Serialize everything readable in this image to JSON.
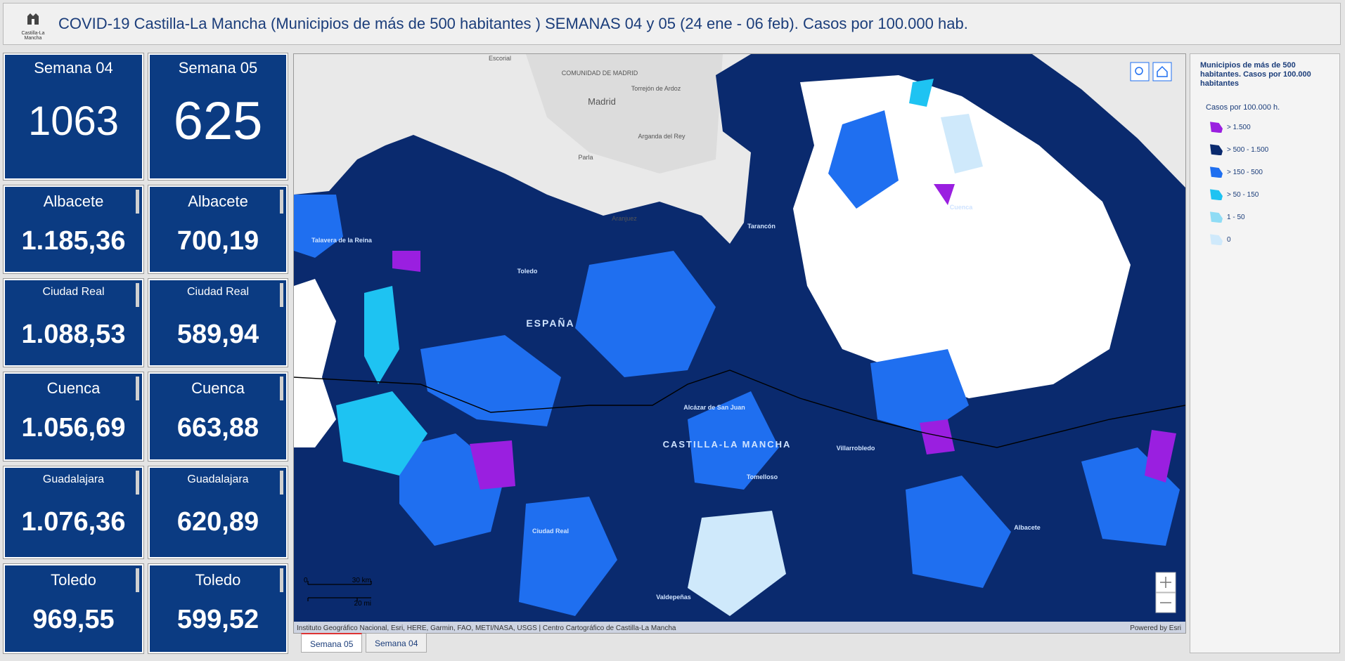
{
  "header": {
    "logo_text": "Castilla-La Mancha",
    "title": "COVID-19 Castilla-La Mancha (Municipios de más de 500 habitantes ) SEMANAS 04 y 05 (24 ene - 06 feb). Casos por 100.000 hab."
  },
  "cards": [
    {
      "label": "Semana 04",
      "value": "1063"
    },
    {
      "label": "Semana 05",
      "value": "625"
    },
    {
      "label": "Albacete",
      "value": "1.185,36"
    },
    {
      "label": "Albacete",
      "value": "700,19"
    },
    {
      "label": "Ciudad Real",
      "value": "1.088,53"
    },
    {
      "label": "Ciudad Real",
      "value": "589,94"
    },
    {
      "label": "Cuenca",
      "value": "1.056,69"
    },
    {
      "label": "Cuenca",
      "value": "663,88"
    },
    {
      "label": "Guadalajara",
      "value": "1.076,36"
    },
    {
      "label": "Guadalajara",
      "value": "620,89"
    },
    {
      "label": "Toledo",
      "value": "969,55"
    },
    {
      "label": "Toledo",
      "value": "599,52"
    }
  ],
  "map": {
    "labels": [
      "Escorial",
      "COMUNIDAD DE MADRID",
      "Madrid",
      "Torrejón de Ardoz",
      "Arganda del Rey",
      "Parla",
      "Aranjuez",
      "Talavera de la Reina",
      "Toledo",
      "ESPAÑA",
      "Tarancón",
      "Cuenca",
      "Alcázar de San Juan",
      "CASTILLA-LA MANCHA",
      "Villarrobledo",
      "Tomelloso",
      "Ciudad Real",
      "Valdepeñas",
      "Albacete"
    ],
    "scale": [
      "0",
      "30 km",
      "20 mi"
    ],
    "attribution": "Instituto Geográfico Nacional, Esri, HERE, Garmin, FAO, METI/NASA, USGS | Centro Cartográfico de Castilla-La Mancha",
    "powered_by": "Powered by Esri"
  },
  "legend": {
    "title": "Municipios de más de 500 habitantes. Casos por 100.000 habitantes",
    "subtitle": "Casos por 100.000 h.",
    "items": [
      {
        "label": "> 1.500",
        "color": "#9a1fe0"
      },
      {
        "label": "> 500 - 1.500",
        "color": "#0a2a6e"
      },
      {
        "label": "> 150 - 500",
        "color": "#1f6ff0"
      },
      {
        "label": "> 50 - 150",
        "color": "#1ec3f2"
      },
      {
        "label": "1 - 50",
        "color": "#8fdcf5"
      },
      {
        "label": "0",
        "color": "#cfe9fb"
      }
    ]
  },
  "tabs": [
    "Semana 05",
    "Semana 04"
  ]
}
